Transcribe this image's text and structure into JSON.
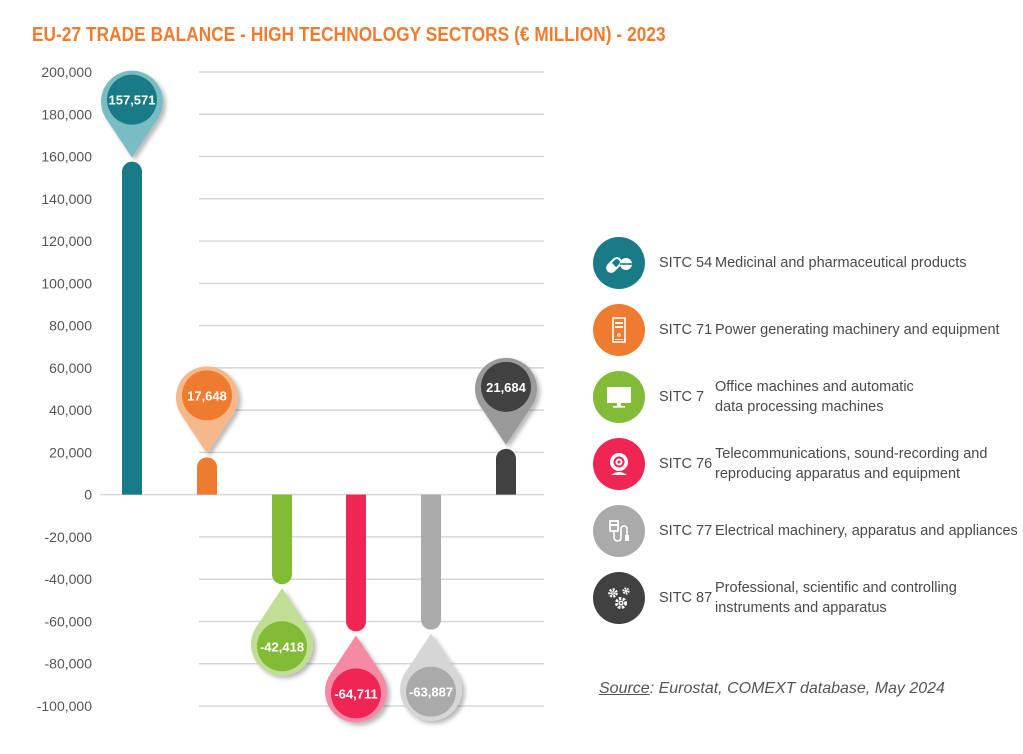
{
  "title": "EU-27 TRADE BALANCE - HIGH TECHNOLOGY SECTORS (€ MILLION) - 2023",
  "chart_data": {
    "type": "bar",
    "title": "EU-27 TRADE BALANCE - HIGH TECHNOLOGY SECTORS (€ MILLION) - 2023",
    "xlabel": "",
    "ylabel": "€ million",
    "ylim": [
      -100000,
      200000
    ],
    "yticks": [
      200000,
      180000,
      160000,
      140000,
      120000,
      100000,
      80000,
      60000,
      40000,
      20000,
      0,
      -20000,
      -40000,
      -60000,
      -80000,
      -100000
    ],
    "ytick_labels": [
      "200,000",
      "180,000",
      "160,000",
      "140,000",
      "120,000",
      "100,000",
      "80,000",
      "60,000",
      "40,000",
      "20,000",
      "0",
      "-20,000",
      "-40,000",
      "-60,000",
      "-80,000",
      "-100,000"
    ],
    "grid": true,
    "legend_position": "right",
    "categories": [
      "SITC 54",
      "SITC 71",
      "SITC 7",
      "SITC 76",
      "SITC 77",
      "SITC 87"
    ],
    "values": [
      157571,
      17648,
      -42418,
      -64711,
      -63887,
      21684
    ],
    "data_labels": [
      "157,571",
      "17,648",
      "-42,418",
      "-64,711",
      "-63,887",
      "21,684"
    ],
    "colors": [
      "#197b87",
      "#ef7b2f",
      "#82bb35",
      "#ef2553",
      "#aaaaaa",
      "#414141"
    ],
    "light_colors": [
      "#79bcc3",
      "#f5b88a",
      "#c1de95",
      "#f58aa5",
      "#d6d6d6",
      "#9a9a9a"
    ]
  },
  "legend": {
    "items": [
      {
        "code": "SITC 54",
        "desc_line1": "Medicinal and pharmaceutical products",
        "desc_line2": "",
        "icon": "pill-icon",
        "color": "#197b87"
      },
      {
        "code": "SITC 71",
        "desc_line1": "Power generating machinery and equipment",
        "desc_line2": "",
        "icon": "computer-tower-icon",
        "color": "#ef7b2f"
      },
      {
        "code": "SITC 7",
        "desc_line1": "Office machines and automatic",
        "desc_line2": "data processing machines",
        "icon": "monitor-icon",
        "color": "#82bb35"
      },
      {
        "code": "SITC 76",
        "desc_line1": "Telecommunications, sound-recording and",
        "desc_line2": "reproducing apparatus and equipment",
        "icon": "webcam-icon",
        "color": "#ef2553"
      },
      {
        "code": "SITC 77",
        "desc_line1": "Electrical machinery, apparatus and appliances",
        "desc_line2": "",
        "icon": "plug-cable-icon",
        "color": "#aaaaaa"
      },
      {
        "code": "SITC 87",
        "desc_line1": "Professional, scientific and controlling",
        "desc_line2": "instruments and apparatus",
        "icon": "gears-icon",
        "color": "#414141"
      }
    ]
  },
  "source": {
    "label": "Source",
    "text": ": Eurostat, COMEXT database, May 2024"
  }
}
